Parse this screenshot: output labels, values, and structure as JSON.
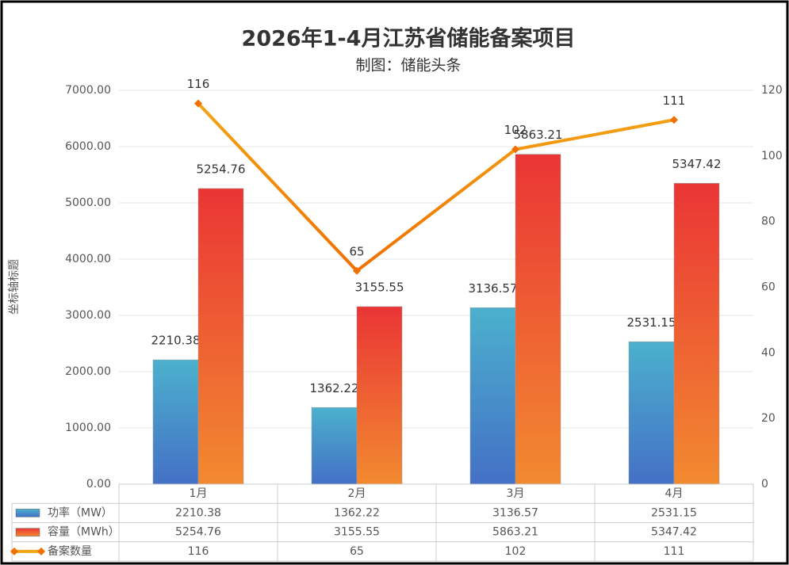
{
  "chart_data": {
    "type": "bar-line",
    "title": "2026年1-4月江苏省储能备案项目",
    "subtitle": "制图：储能头条",
    "y_label": "坐标轴标题",
    "categories": [
      "1月",
      "2月",
      "3月",
      "4月"
    ],
    "series": [
      {
        "name": "功率（MW）",
        "type": "bar",
        "color": "#4bb1cd",
        "values": [
          2210.38,
          1362.22,
          3136.57,
          2531.15
        ]
      },
      {
        "name": "容量（MWh）",
        "type": "bar",
        "color": "#ea3535",
        "values": [
          5254.76,
          3155.55,
          5863.21,
          5347.42
        ]
      },
      {
        "name": "备案数量",
        "type": "line",
        "axis": "y2",
        "color": "#f2a516",
        "values": [
          116,
          65,
          102,
          111
        ]
      }
    ],
    "ylim": [
      0,
      7000
    ],
    "yticks": [
      {
        "value": 0,
        "label": "0.00"
      },
      {
        "value": 1000,
        "label": "1000.00"
      },
      {
        "value": 2000,
        "label": "2000.00"
      },
      {
        "value": 3000,
        "label": "3000.00"
      },
      {
        "value": 4000,
        "label": "4000.00"
      },
      {
        "value": 5000,
        "label": "5000.00"
      },
      {
        "value": 6000,
        "label": "6000.00"
      },
      {
        "value": 7000,
        "label": "7000.00"
      }
    ],
    "y2lim": [
      0,
      120
    ],
    "y2ticks": [
      0,
      20,
      40,
      60,
      80,
      100,
      120
    ],
    "grid": true,
    "data_table": true
  }
}
